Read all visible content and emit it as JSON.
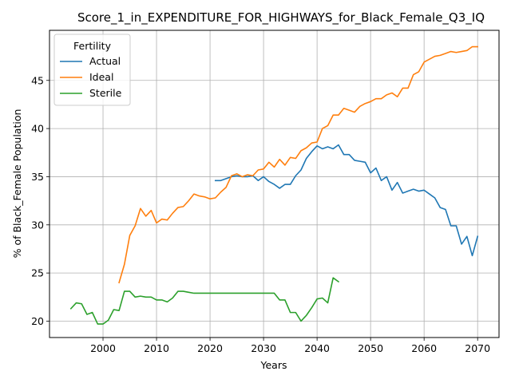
{
  "chart_data": {
    "type": "line",
    "title": "Score_1_in_EXPENDITURE_FOR_HIGHWAYS_for_Black_Female_Q3_IQ",
    "xlabel": "Years",
    "ylabel": "% of Black_Female Population",
    "xlim": [
      1990,
      2074
    ],
    "ylim": [
      18.3,
      50.2
    ],
    "xticks": [
      2000,
      2010,
      2020,
      2030,
      2040,
      2050,
      2060,
      2070
    ],
    "yticks": [
      20,
      25,
      30,
      35,
      40,
      45
    ],
    "grid": true,
    "legend": {
      "title": "Fertility",
      "position": "top-left"
    },
    "series": [
      {
        "name": "Actual",
        "color": "#1f77b4",
        "x": [
          2021,
          2022,
          2023,
          2024,
          2025,
          2026,
          2027,
          2028,
          2029,
          2030,
          2031,
          2032,
          2033,
          2034,
          2035,
          2036,
          2037,
          2038,
          2039,
          2040,
          2041,
          2042,
          2043,
          2044,
          2045,
          2046,
          2047,
          2048,
          2049,
          2050,
          2051,
          2052,
          2053,
          2054,
          2055,
          2056,
          2057,
          2058,
          2059,
          2060,
          2061,
          2062,
          2063,
          2064,
          2065,
          2066,
          2067,
          2068,
          2069,
          2070
        ],
        "y": [
          34.6,
          34.6,
          34.8,
          35.0,
          35.1,
          35.0,
          35.0,
          35.1,
          34.6,
          35.0,
          34.5,
          34.2,
          33.8,
          34.2,
          34.2,
          35.1,
          35.7,
          36.9,
          37.6,
          38.2,
          37.9,
          38.1,
          37.9,
          38.3,
          37.3,
          37.3,
          36.7,
          36.6,
          36.5,
          35.4,
          35.9,
          34.6,
          35.0,
          33.6,
          34.4,
          33.3,
          33.5,
          33.7,
          33.5,
          33.6,
          33.2,
          32.8,
          31.8,
          31.6,
          29.9,
          29.9,
          28.0,
          28.8,
          26.8,
          28.8
        ]
      },
      {
        "name": "Ideal",
        "color": "#ff7f0e",
        "x": [
          2003,
          2004,
          2005,
          2006,
          2007,
          2008,
          2009,
          2010,
          2011,
          2012,
          2013,
          2014,
          2015,
          2016,
          2017,
          2018,
          2019,
          2020,
          2021,
          2022,
          2023,
          2024,
          2025,
          2026,
          2027,
          2028,
          2029,
          2030,
          2031,
          2032,
          2033,
          2034,
          2035,
          2036,
          2037,
          2038,
          2039,
          2040,
          2041,
          2042,
          2043,
          2044,
          2045,
          2046,
          2047,
          2048,
          2049,
          2050,
          2051,
          2052,
          2053,
          2054,
          2055,
          2056,
          2057,
          2058,
          2059,
          2060,
          2061,
          2062,
          2063,
          2064,
          2065,
          2066,
          2067,
          2068,
          2069,
          2070
        ],
        "y": [
          24.0,
          25.9,
          28.9,
          29.9,
          31.7,
          30.9,
          31.5,
          30.2,
          30.6,
          30.5,
          31.2,
          31.8,
          31.9,
          32.5,
          33.2,
          33.0,
          32.9,
          32.7,
          32.8,
          33.4,
          33.9,
          35.1,
          35.3,
          35.0,
          35.2,
          35.1,
          35.7,
          35.8,
          36.5,
          36.0,
          36.8,
          36.2,
          37.0,
          36.9,
          37.7,
          38.0,
          38.5,
          38.6,
          40.0,
          40.3,
          41.4,
          41.4,
          42.1,
          41.9,
          41.7,
          42.3,
          42.6,
          42.8,
          43.1,
          43.1,
          43.5,
          43.7,
          43.3,
          44.2,
          44.2,
          45.6,
          45.9,
          46.9,
          47.2,
          47.5,
          47.6,
          47.8,
          48.0,
          47.9,
          48.0,
          48.1,
          48.5,
          48.5
        ]
      },
      {
        "name": "Sterile",
        "color": "#2ca02c",
        "x": [
          1994,
          1995,
          1996,
          1997,
          1998,
          1999,
          2000,
          2001,
          2002,
          2003,
          2004,
          2005,
          2006,
          2007,
          2008,
          2009,
          2010,
          2011,
          2012,
          2013,
          2014,
          2015,
          2016,
          2017,
          2018,
          2019,
          2020,
          2021,
          2022,
          2023,
          2024,
          2025,
          2026,
          2027,
          2028,
          2029,
          2030,
          2031,
          2032,
          2033,
          2034,
          2035,
          2036,
          2037,
          2038,
          2039,
          2040,
          2041,
          2042,
          2043,
          2044
        ],
        "y": [
          21.3,
          21.9,
          21.8,
          20.7,
          20.9,
          19.7,
          19.7,
          20.1,
          21.2,
          21.1,
          23.1,
          23.1,
          22.5,
          22.6,
          22.5,
          22.5,
          22.2,
          22.2,
          22.0,
          22.4,
          23.1,
          23.1,
          23.0,
          22.9,
          22.9,
          22.9,
          22.9,
          22.9,
          22.9,
          22.9,
          22.9,
          22.9,
          22.9,
          22.9,
          22.9,
          22.9,
          22.9,
          22.9,
          22.9,
          22.2,
          22.2,
          20.9,
          20.9,
          20.0,
          20.6,
          21.4,
          22.3,
          22.4,
          21.9,
          24.5,
          24.1
        ]
      }
    ]
  }
}
